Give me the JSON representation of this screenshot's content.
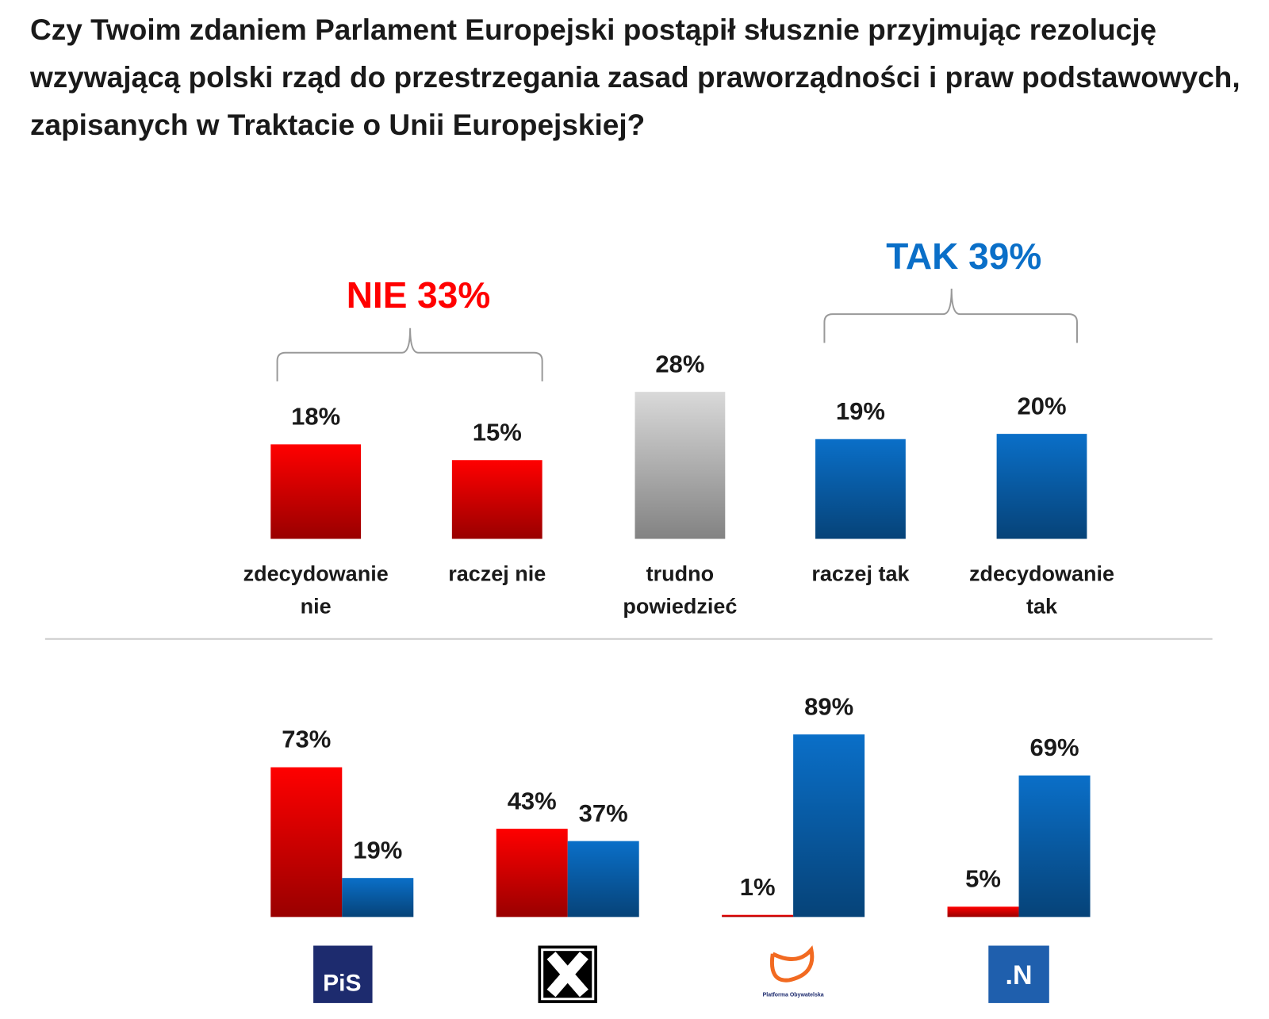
{
  "chart_data": [
    {
      "type": "bar",
      "title": "Czy Twoim zdaniem Parlament Europejski postąpił słusznie przyjmując rezolucję wzywającą polski rząd do przestrzegania zasad praworządności i praw podstawowych, zapisanych w Traktacie o Unii Europejskiej?",
      "categories": [
        "zdecydowanie\nnie",
        "raczej nie",
        "trudno\npowiedzieć",
        "raczej tak",
        "zdecydowanie\ntak"
      ],
      "values": [
        18,
        15,
        28,
        19,
        20
      ],
      "value_labels": [
        "18%",
        "15%",
        "28%",
        "19%",
        "20%"
      ],
      "colors": [
        "#ff0000",
        "#ff0000",
        "#d9d9d9",
        "#0a6fc8",
        "#0a6fc8"
      ],
      "annotations": [
        {
          "text": "NIE 33%",
          "color": "#ff0000"
        },
        {
          "text": "TAK 39%",
          "color": "#0a6fc8"
        }
      ]
    },
    {
      "type": "grouped_bar",
      "categories": [
        "PiS",
        null,
        "Platforma Obywatelska",
        ".N"
      ],
      "series": [
        {
          "color": "#ff0000",
          "values": [
            73,
            43,
            1,
            5
          ],
          "value_labels": [
            "73%",
            "43%",
            "1%",
            "5%"
          ]
        },
        {
          "color": "#0a6fc8",
          "values": [
            19,
            37,
            89,
            69
          ],
          "value_labels": [
            "19%",
            "37%",
            "89%",
            "69%"
          ]
        }
      ]
    }
  ]
}
